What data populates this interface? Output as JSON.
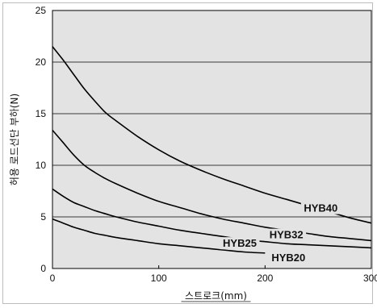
{
  "chart_data": {
    "type": "line",
    "xlabel": "스트로크(mm)",
    "ylabel": "허용 로드선단 부하(N)",
    "xlim": [
      0,
      300
    ],
    "ylim": [
      0,
      25
    ],
    "x_ticks": [
      0,
      100,
      200,
      300
    ],
    "y_ticks": [
      0,
      5,
      10,
      15,
      20,
      25
    ],
    "grid": "horizontal",
    "plot_background": "#e3e3e3",
    "line_color": "#000000",
    "series": [
      {
        "name": "HYB40",
        "x": [
          0,
          10,
          20,
          30,
          40,
          50,
          60,
          80,
          100,
          120,
          140,
          160,
          180,
          200,
          220,
          240,
          260,
          280,
          300
        ],
        "y": [
          21.5,
          20.2,
          18.8,
          17.4,
          16.2,
          15.1,
          14.3,
          12.8,
          11.5,
          10.4,
          9.5,
          8.7,
          8.0,
          7.3,
          6.7,
          6.1,
          5.5,
          4.9,
          4.4
        ]
      },
      {
        "name": "HYB32",
        "x": [
          0,
          10,
          20,
          30,
          40,
          50,
          60,
          80,
          100,
          120,
          140,
          160,
          180,
          200,
          220,
          240,
          260,
          280,
          300
        ],
        "y": [
          13.4,
          12.2,
          11.0,
          10.0,
          9.3,
          8.7,
          8.2,
          7.3,
          6.5,
          5.9,
          5.3,
          4.8,
          4.4,
          4.0,
          3.7,
          3.4,
          3.1,
          2.9,
          2.7
        ]
      },
      {
        "name": "HYB25",
        "x": [
          0,
          10,
          20,
          30,
          40,
          50,
          60,
          80,
          100,
          120,
          140,
          160,
          180,
          200,
          220,
          240,
          260,
          280,
          300
        ],
        "y": [
          7.7,
          7.0,
          6.4,
          6.0,
          5.6,
          5.3,
          5.0,
          4.5,
          4.1,
          3.7,
          3.4,
          3.1,
          2.8,
          2.6,
          2.4,
          2.3,
          2.2,
          2.1,
          2.0
        ]
      },
      {
        "name": "HYB20",
        "x": [
          0,
          10,
          20,
          30,
          40,
          50,
          60,
          80,
          100,
          120,
          140,
          160,
          180,
          200
        ],
        "y": [
          4.8,
          4.4,
          4.0,
          3.7,
          3.4,
          3.2,
          3.0,
          2.7,
          2.4,
          2.2,
          2.0,
          1.8,
          1.6,
          1.5
        ]
      }
    ]
  }
}
